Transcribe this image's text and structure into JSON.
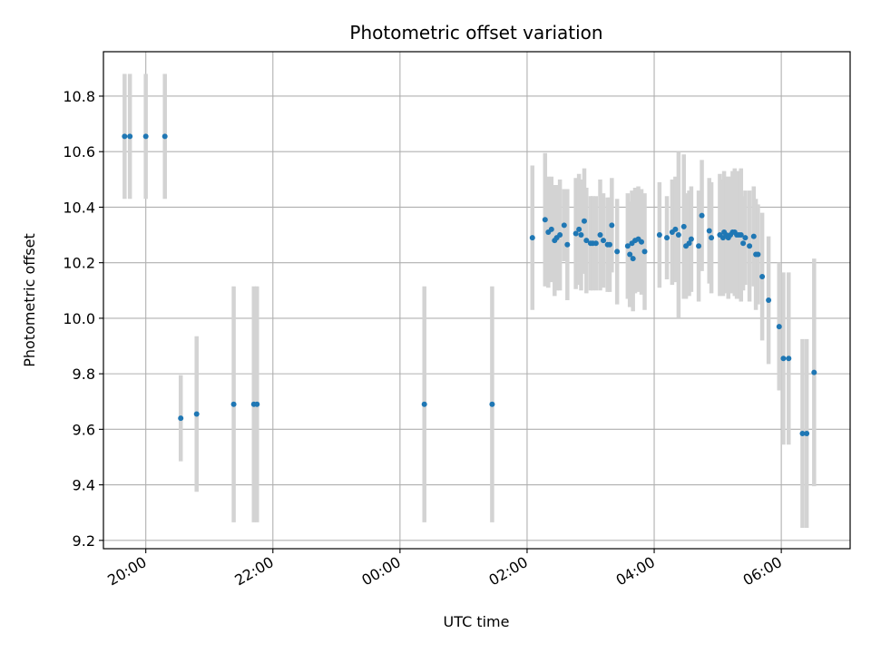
{
  "chart_data": {
    "type": "scatter",
    "title": "Photometric offset variation",
    "xlabel": "UTC time",
    "ylabel": "Photometric offset",
    "x_unit": "hours (UTC, continuing past midnight as 24+)",
    "xlim": [
      "19:20",
      "31:05"
    ],
    "ylim": [
      9.17,
      10.96
    ],
    "grid": true,
    "x_tick_labels": [
      "20:00",
      "22:00",
      "00:00",
      "02:00",
      "04:00",
      "06:00"
    ],
    "y_tick_labels": [
      "9.2",
      "9.4",
      "9.6",
      "9.8",
      "10.0",
      "10.2",
      "10.4",
      "10.6",
      "10.8"
    ],
    "colors": {
      "point": "#1f77b4",
      "errorbar": "#d3d3d3",
      "grid": "#b0b0b0"
    },
    "series": [
      {
        "x": [
          "19:40",
          "19:45",
          "20:00",
          "20:18",
          "20:33",
          "20:48",
          "21:23",
          "21:42",
          "21:45",
          "00:23",
          "01:27",
          "02:05",
          "02:17",
          "02:20",
          "02:23",
          "02:26",
          "02:28",
          "02:31",
          "02:35",
          "02:38",
          "02:46",
          "02:49",
          "02:51",
          "02:54",
          "02:56",
          "03:00",
          "03:02",
          "03:05",
          "03:09",
          "03:12",
          "03:16",
          "03:18",
          "03:20",
          "03:25",
          "03:35",
          "03:37",
          "03:39",
          "03:40",
          "03:42",
          "03:45",
          "03:48",
          "03:51",
          "04:05",
          "04:12",
          "04:17",
          "04:20",
          "04:23",
          "04:28",
          "04:30",
          "04:33",
          "04:35",
          "04:42",
          "04:45",
          "04:52",
          "04:54",
          "05:02",
          "05:05",
          "05:06",
          "05:08",
          "05:10",
          "05:12",
          "05:14",
          "05:16",
          "05:18",
          "05:20",
          "05:22",
          "05:24",
          "05:26",
          "05:30",
          "05:34",
          "05:36",
          "05:38",
          "05:42",
          "05:48",
          "05:58",
          "06:02",
          "06:07",
          "06:20",
          "06:24",
          "06:31"
        ],
        "y": [
          10.655,
          10.655,
          10.655,
          10.655,
          9.64,
          9.655,
          9.69,
          9.69,
          9.69,
          9.69,
          9.69,
          10.29,
          10.355,
          10.31,
          10.32,
          10.28,
          10.29,
          10.3,
          10.335,
          10.265,
          10.305,
          10.32,
          10.3,
          10.35,
          10.28,
          10.27,
          10.27,
          10.27,
          10.3,
          10.28,
          10.265,
          10.265,
          10.335,
          10.24,
          10.26,
          10.23,
          10.27,
          10.215,
          10.28,
          10.285,
          10.275,
          10.24,
          10.3,
          10.29,
          10.31,
          10.32,
          10.3,
          10.33,
          10.26,
          10.27,
          10.285,
          10.26,
          10.37,
          10.315,
          10.29,
          10.3,
          10.29,
          10.31,
          10.3,
          10.29,
          10.3,
          10.31,
          10.31,
          10.3,
          10.3,
          10.3,
          10.27,
          10.29,
          10.26,
          10.295,
          10.23,
          10.23,
          10.15,
          10.065,
          9.97,
          9.855,
          9.855,
          9.585,
          9.585,
          9.805
        ],
        "err": [
          0.225,
          0.225,
          0.225,
          0.225,
          0.155,
          0.28,
          0.425,
          0.425,
          0.425,
          0.425,
          0.425,
          0.26,
          0.24,
          0.2,
          0.19,
          0.2,
          0.19,
          0.2,
          0.13,
          0.2,
          0.2,
          0.2,
          0.2,
          0.19,
          0.19,
          0.17,
          0.17,
          0.17,
          0.2,
          0.17,
          0.17,
          0.17,
          0.17,
          0.19,
          0.19,
          0.19,
          0.19,
          0.19,
          0.19,
          0.19,
          0.19,
          0.21,
          0.19,
          0.15,
          0.19,
          0.19,
          0.3,
          0.26,
          0.19,
          0.19,
          0.19,
          0.2,
          0.2,
          0.19,
          0.2,
          0.22,
          0.21,
          0.22,
          0.21,
          0.22,
          0.21,
          0.22,
          0.23,
          0.23,
          0.23,
          0.24,
          0.17,
          0.17,
          0.2,
          0.18,
          0.2,
          0.18,
          0.23,
          0.23,
          0.23,
          0.31,
          0.31,
          0.34,
          0.34,
          0.41
        ]
      }
    ]
  }
}
